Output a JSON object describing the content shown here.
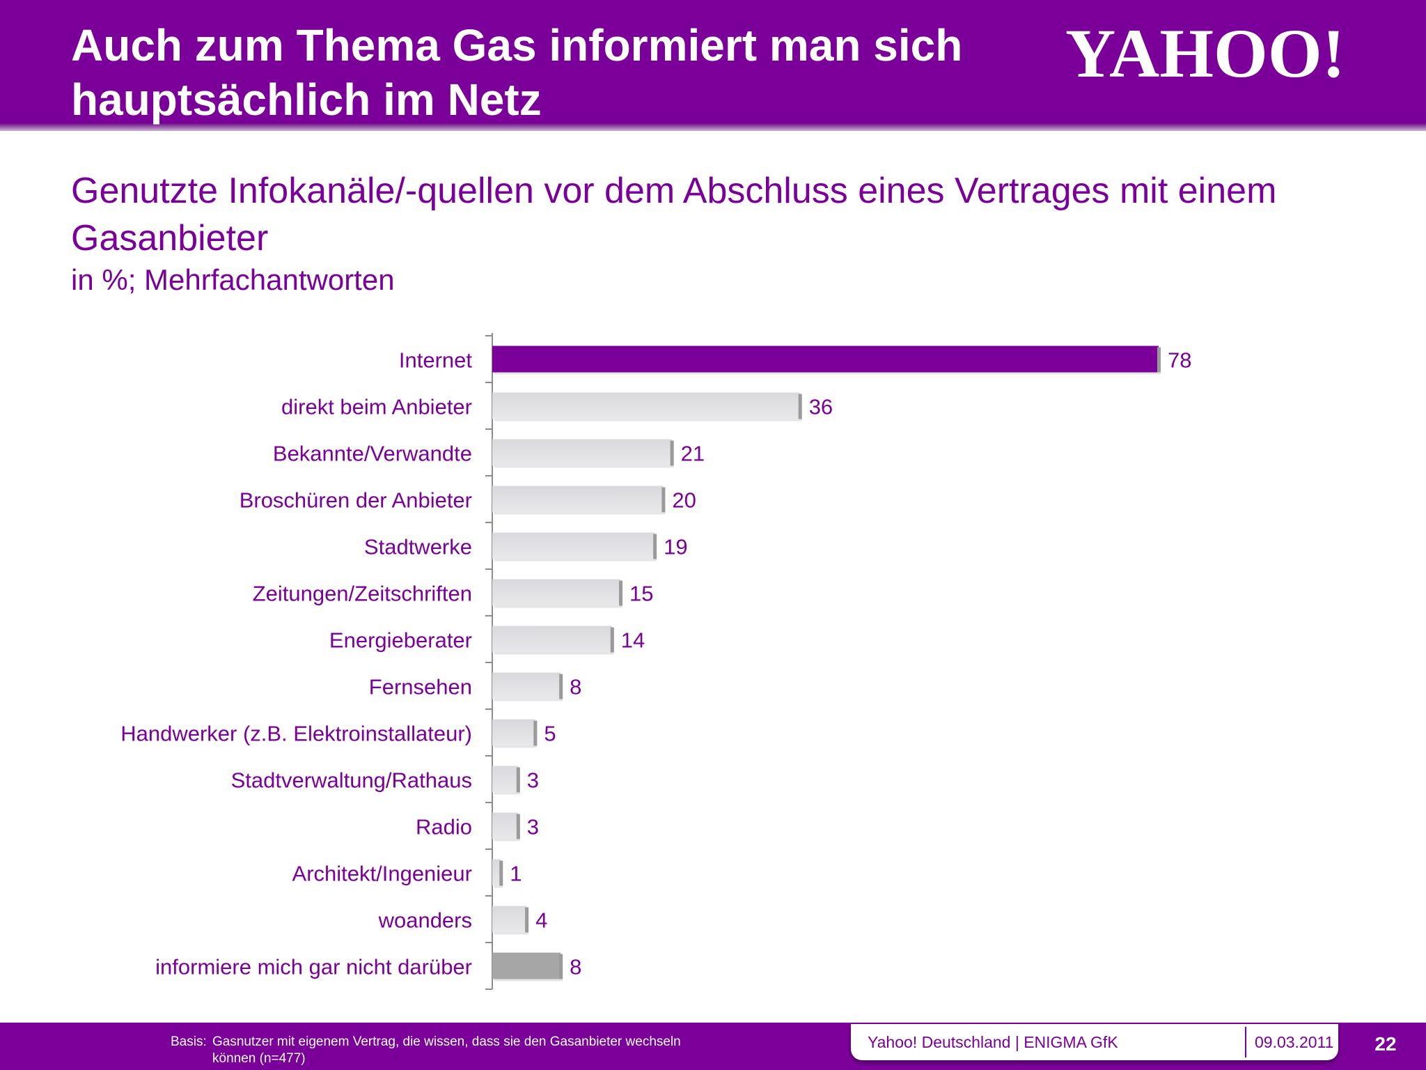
{
  "header": {
    "title": "Auch zum Thema Gas informiert man sich hauptsächlich im Netz",
    "brand": "YAHOO!",
    "background_color": "#7b0099"
  },
  "chart_heading": "Genutzte Infokanäle/-quellen vor dem Abschluss eines Vertrages mit einem Gasanbieter",
  "chart_subheading": "in %; Mehrfachantworten",
  "chart_data": {
    "type": "bar",
    "orientation": "horizontal",
    "categories": [
      "Internet",
      "direkt beim Anbieter",
      "Bekannte/Verwandte",
      "Broschüren der Anbieter",
      "Stadtwerke",
      "Zeitungen/Zeitschriften",
      "Energieberater",
      "Fernsehen",
      "Handwerker (z.B. Elektroinstallateur)",
      "Stadtverwaltung/Rathaus",
      "Radio",
      "Architekt/Ingenieur",
      "woanders",
      "informiere mich gar nicht darüber"
    ],
    "values": [
      78,
      36,
      21,
      20,
      19,
      15,
      14,
      8,
      5,
      3,
      3,
      1,
      4,
      8
    ],
    "bar_colors": [
      "#7b0099",
      "#dcdcdc",
      "#dcdcdc",
      "#dcdcdc",
      "#dcdcdc",
      "#dcdcdc",
      "#dcdcdc",
      "#dcdcdc",
      "#dcdcdc",
      "#dcdcdc",
      "#dcdcdc",
      "#dcdcdc",
      "#dcdcdc",
      "#a6a6a6"
    ],
    "label_color": "#7b0099",
    "xlim": [
      0,
      100
    ],
    "grid": false,
    "legend": "none"
  },
  "footer": {
    "basis_label": "Basis:",
    "basis_text": "Gasnutzer mit eigenem Vertrag, die wissen, dass sie den Gasanbieter wechseln können (n=477)",
    "company": "Yahoo! Deutschland | ENIGMA GfK",
    "date": "09.03.2011",
    "page_number": "22"
  }
}
